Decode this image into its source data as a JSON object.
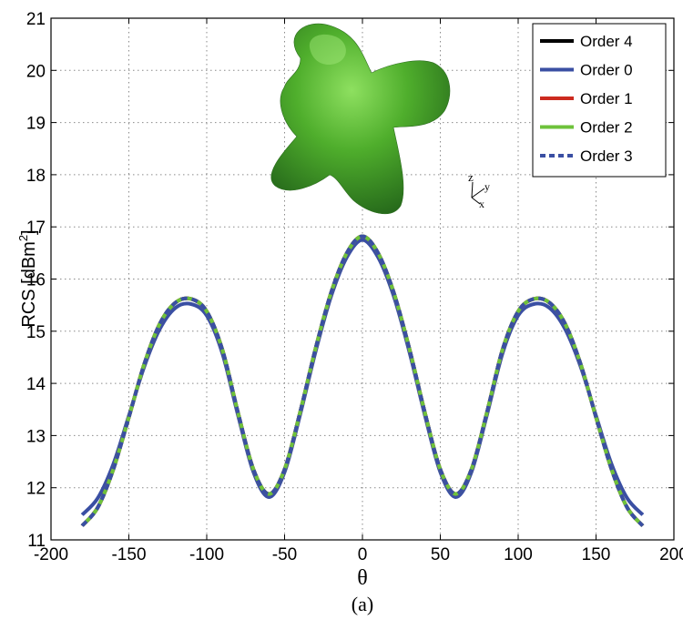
{
  "chart_data": {
    "type": "line",
    "xlabel": "θ",
    "ylabel": "RCS [dBm",
    "ylabel_sup": "2",
    "ylabel_close": "]",
    "caption": "(a)",
    "xlim": [
      -200,
      200
    ],
    "ylim": [
      11,
      21
    ],
    "xticks": [
      "-200",
      "-150",
      "-100",
      "-50",
      "0",
      "50",
      "100",
      "150",
      "200"
    ],
    "yticks": [
      "11",
      "12",
      "13",
      "14",
      "15",
      "16",
      "17",
      "18",
      "19",
      "20",
      "21"
    ],
    "grid": true,
    "legend_position": "top-right",
    "inset": {
      "shape": "green-four-lobed-3d-body",
      "axes_labels": [
        "z",
        "y",
        "x"
      ]
    },
    "x": [
      -180,
      -170,
      -160,
      -150,
      -140,
      -130,
      -120,
      -110,
      -100,
      -90,
      -80,
      -70,
      -60,
      -50,
      -40,
      -30,
      -20,
      -10,
      0,
      10,
      20,
      30,
      40,
      50,
      60,
      70,
      80,
      90,
      100,
      110,
      120,
      130,
      140,
      150,
      160,
      170,
      180
    ],
    "series": [
      {
        "name": "Order 4",
        "color": "#000000",
        "style": "solid",
        "values": [
          11.27,
          11.62,
          12.35,
          13.35,
          14.38,
          15.15,
          15.55,
          15.62,
          15.38,
          14.65,
          13.45,
          12.35,
          11.88,
          12.35,
          13.45,
          14.68,
          15.75,
          16.5,
          16.82,
          16.5,
          15.75,
          14.68,
          13.45,
          12.35,
          11.88,
          12.35,
          13.45,
          14.65,
          15.38,
          15.62,
          15.55,
          15.15,
          14.38,
          13.35,
          12.35,
          11.62,
          11.27
        ]
      },
      {
        "name": "Order 0",
        "color": "#3a4fa3",
        "style": "solid",
        "values": [
          11.48,
          11.8,
          12.45,
          13.38,
          14.33,
          15.05,
          15.45,
          15.52,
          15.3,
          14.58,
          13.4,
          12.3,
          11.82,
          12.3,
          13.4,
          14.62,
          15.68,
          16.42,
          16.75,
          16.42,
          15.68,
          14.62,
          13.4,
          12.3,
          11.82,
          12.3,
          13.4,
          14.58,
          15.3,
          15.52,
          15.45,
          15.05,
          14.33,
          13.38,
          12.45,
          11.8,
          11.48
        ]
      },
      {
        "name": "Order 1",
        "color": "#cc2a1f",
        "style": "solid",
        "values": [
          11.27,
          11.62,
          12.35,
          13.35,
          14.38,
          15.15,
          15.55,
          15.62,
          15.38,
          14.65,
          13.45,
          12.35,
          11.88,
          12.35,
          13.45,
          14.68,
          15.75,
          16.5,
          16.82,
          16.5,
          15.75,
          14.68,
          13.45,
          12.35,
          11.88,
          12.35,
          13.45,
          14.65,
          15.38,
          15.62,
          15.55,
          15.15,
          14.38,
          13.35,
          12.35,
          11.62,
          11.27
        ]
      },
      {
        "name": "Order 2",
        "color": "#6ec23b",
        "style": "solid",
        "values": [
          11.27,
          11.62,
          12.35,
          13.35,
          14.38,
          15.15,
          15.55,
          15.62,
          15.38,
          14.65,
          13.45,
          12.35,
          11.88,
          12.35,
          13.45,
          14.68,
          15.75,
          16.5,
          16.82,
          16.5,
          15.75,
          14.68,
          13.45,
          12.35,
          11.88,
          12.35,
          13.45,
          14.65,
          15.38,
          15.62,
          15.55,
          15.15,
          14.38,
          13.35,
          12.35,
          11.62,
          11.27
        ]
      },
      {
        "name": "Order 3",
        "color": "#3a4fa3",
        "style": "dashed",
        "values": [
          11.27,
          11.62,
          12.35,
          13.35,
          14.38,
          15.15,
          15.55,
          15.62,
          15.38,
          14.65,
          13.45,
          12.35,
          11.88,
          12.35,
          13.45,
          14.68,
          15.75,
          16.5,
          16.82,
          16.5,
          15.75,
          14.68,
          13.45,
          12.35,
          11.88,
          12.35,
          13.45,
          14.65,
          15.38,
          15.62,
          15.55,
          15.15,
          14.38,
          13.35,
          12.35,
          11.62,
          11.27
        ]
      }
    ]
  }
}
